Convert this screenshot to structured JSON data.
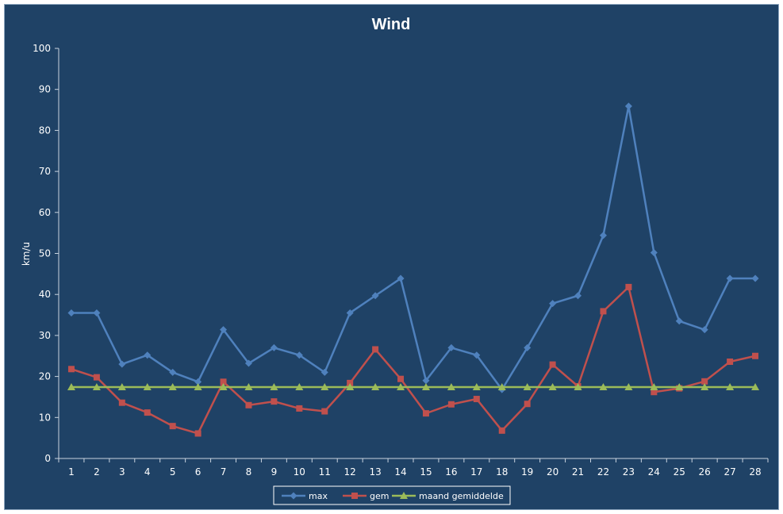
{
  "chart_data": {
    "type": "line",
    "title": "Wind",
    "xlabel": "",
    "ylabel": "km/u",
    "ylim": [
      0,
      100
    ],
    "yticks": [
      0,
      10,
      20,
      30,
      40,
      50,
      60,
      70,
      80,
      90,
      100
    ],
    "categories": [
      "1",
      "2",
      "3",
      "4",
      "5",
      "6",
      "7",
      "8",
      "9",
      "10",
      "11",
      "12",
      "13",
      "14",
      "15",
      "16",
      "17",
      "18",
      "19",
      "20",
      "21",
      "22",
      "23",
      "24",
      "25",
      "26",
      "27",
      "28"
    ],
    "grid": false,
    "legend_position": "bottom",
    "series": [
      {
        "name": "max",
        "color": "#4f81bd",
        "marker": "diamond",
        "values": [
          35.5,
          35.5,
          23,
          25.2,
          21,
          18.7,
          31.4,
          23.2,
          27,
          25.2,
          21,
          35.5,
          39.7,
          43.9,
          19,
          27,
          25.2,
          16.8,
          27,
          37.8,
          39.7,
          54.4,
          85.9,
          50.2,
          33.5,
          31.4,
          43.9,
          43.9
        ]
      },
      {
        "name": "gem",
        "color": "#c0504d",
        "marker": "square",
        "values": [
          21.8,
          19.8,
          13.6,
          11.2,
          7.9,
          6.1,
          18.7,
          13,
          13.9,
          12.2,
          11.5,
          18.4,
          26.6,
          19.4,
          11,
          13.2,
          14.5,
          6.8,
          13.3,
          22.9,
          17.6,
          35.9,
          41.8,
          16.2,
          17.1,
          18.8,
          23.6,
          25
        ]
      },
      {
        "name": "maand gemiddelde",
        "color": "#9bbb59",
        "marker": "triangle",
        "values": [
          17.4,
          17.4,
          17.4,
          17.4,
          17.4,
          17.4,
          17.4,
          17.4,
          17.4,
          17.4,
          17.4,
          17.4,
          17.4,
          17.4,
          17.4,
          17.4,
          17.4,
          17.4,
          17.4,
          17.4,
          17.4,
          17.4,
          17.4,
          17.4,
          17.4,
          17.4,
          17.4,
          17.4
        ]
      }
    ]
  }
}
